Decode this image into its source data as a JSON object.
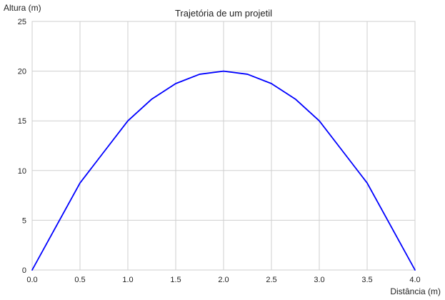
{
  "chart_data": {
    "type": "line",
    "title": "Trajetória de um projetil",
    "xlabel": "Distância (m)",
    "ylabel": "Altura (m)",
    "xlim": [
      0,
      4
    ],
    "ylim": [
      0,
      25
    ],
    "grid": true,
    "x_ticks": [
      "0.0",
      "0.5",
      "1.0",
      "1.5",
      "2.0",
      "2.5",
      "3.0",
      "3.5",
      "4.0"
    ],
    "y_ticks": [
      "0",
      "5",
      "10",
      "15",
      "20",
      "25"
    ],
    "series": [
      {
        "color": "#0000ff",
        "x": [
          0.0,
          0.25,
          0.5,
          0.75,
          1.0,
          1.25,
          1.5,
          1.75,
          2.0,
          2.25,
          2.5,
          2.75,
          3.0,
          3.25,
          3.5,
          3.75,
          4.0
        ],
        "y": [
          0.0,
          4.38,
          8.75,
          11.88,
          15.0,
          17.19,
          18.75,
          19.69,
          20.0,
          19.69,
          18.75,
          17.19,
          15.0,
          11.88,
          8.75,
          4.38,
          0.0
        ]
      }
    ]
  }
}
